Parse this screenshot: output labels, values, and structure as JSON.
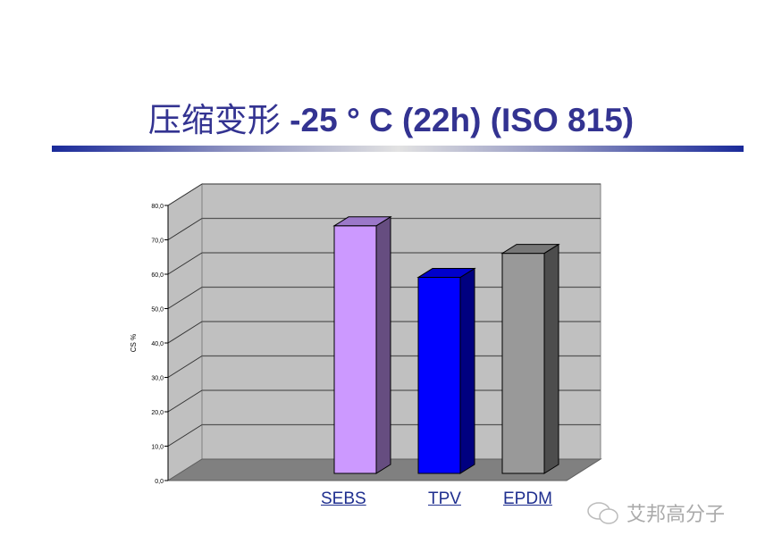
{
  "title": {
    "cn": "压缩变形",
    "en": " -25 °  C (22h) (ISO 815)"
  },
  "chart_data": {
    "type": "bar",
    "style": "3d-column",
    "categories": [
      "SEBS",
      "TPV",
      "EPDM"
    ],
    "values": [
      72,
      57,
      64
    ],
    "colors": [
      "#cc99ff",
      "#0000ff",
      "#999999"
    ],
    "side_colors": [
      "#664d80",
      "#000080",
      "#4d4d4d"
    ],
    "top_colors": [
      "#9b78c9",
      "#0000cc",
      "#777777"
    ],
    "ylabel": "CS %",
    "ylim": [
      0,
      80
    ],
    "yticks": [
      "0,0",
      "10,0",
      "20,0",
      "30,0",
      "40,0",
      "50,0",
      "60,0",
      "70,0",
      "80,0"
    ],
    "grid": true
  },
  "watermark": "艾邦高分子"
}
